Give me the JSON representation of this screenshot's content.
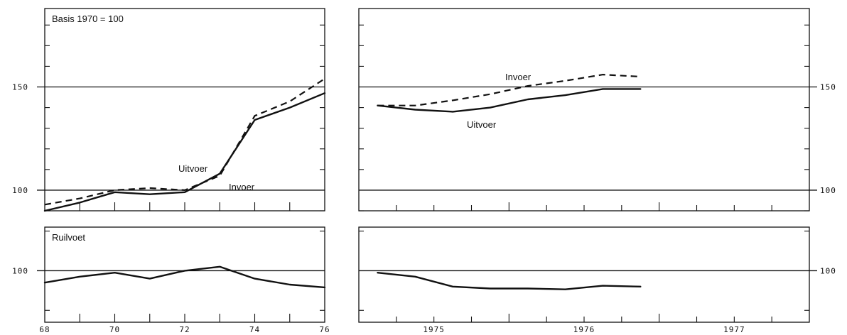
{
  "chart_data": [
    {
      "id": "index-annual",
      "type": "line",
      "annotation": "Basis 1970 = 100",
      "x_ticks": [
        "68",
        "70",
        "72",
        "74",
        "76"
      ],
      "y_ticks": [
        "100",
        "150"
      ],
      "xlim": [
        1968,
        1976
      ],
      "ylim": [
        90,
        188
      ],
      "series": [
        {
          "name": "Uitvoer",
          "style": "solid",
          "x": [
            1968,
            1969,
            1970,
            1971,
            1972,
            1973,
            1974,
            1975,
            1976
          ],
          "y": [
            90,
            94,
            99,
            98,
            99,
            108,
            134,
            140,
            147
          ]
        },
        {
          "name": "Invoer",
          "style": "dashed",
          "x": [
            1968,
            1969,
            1970,
            1971,
            1972,
            1973,
            1974,
            1975,
            1976
          ],
          "y": [
            93,
            96,
            100,
            101,
            100,
            107,
            136,
            143,
            154
          ]
        }
      ]
    },
    {
      "id": "index-quarterly",
      "type": "line",
      "x_ticks": [
        "1975",
        "1976",
        "1977"
      ],
      "y_ticks": [
        "100",
        "150"
      ],
      "xlim": [
        1975,
        1978
      ],
      "ylim": [
        90,
        188
      ],
      "series": [
        {
          "name": "Uitvoer",
          "style": "solid",
          "x": [
            1975.125,
            1975.375,
            1975.625,
            1975.875,
            1976.125,
            1976.375,
            1976.625,
            1976.875
          ],
          "y": [
            141,
            139,
            138,
            140,
            144,
            146,
            149,
            149
          ]
        },
        {
          "name": "Invoer",
          "style": "dashed",
          "x": [
            1975.125,
            1975.375,
            1975.625,
            1975.875,
            1976.125,
            1976.375,
            1976.625,
            1976.875
          ],
          "y": [
            141,
            141,
            143.5,
            146.5,
            150.5,
            153,
            156,
            155
          ]
        }
      ]
    },
    {
      "id": "terms-annual",
      "type": "line",
      "annotation": "Ruilvoet",
      "x_ticks": [
        "68",
        "70",
        "72",
        "74",
        "76"
      ],
      "y_ticks": [
        "100"
      ],
      "xlim": [
        1968,
        1976
      ],
      "ylim": [
        87,
        111
      ],
      "series": [
        {
          "style": "solid",
          "x": [
            1968,
            1969,
            1970,
            1971,
            1972,
            1973,
            1974,
            1975,
            1976
          ],
          "y": [
            97,
            98.5,
            99.5,
            98,
            100,
            101,
            98,
            96.5,
            95.8
          ]
        }
      ]
    },
    {
      "id": "terms-quarterly",
      "type": "line",
      "x_ticks": [
        "1975",
        "1976",
        "1977"
      ],
      "y_ticks": [
        "100"
      ],
      "xlim": [
        1975,
        1978
      ],
      "ylim": [
        87,
        111
      ],
      "series": [
        {
          "style": "solid",
          "x": [
            1975.125,
            1975.375,
            1975.625,
            1975.875,
            1976.125,
            1976.375,
            1976.625,
            1976.875
          ],
          "y": [
            99.5,
            98.5,
            96,
            95.5,
            95.5,
            95.3,
            96.2,
            96
          ]
        }
      ]
    }
  ]
}
